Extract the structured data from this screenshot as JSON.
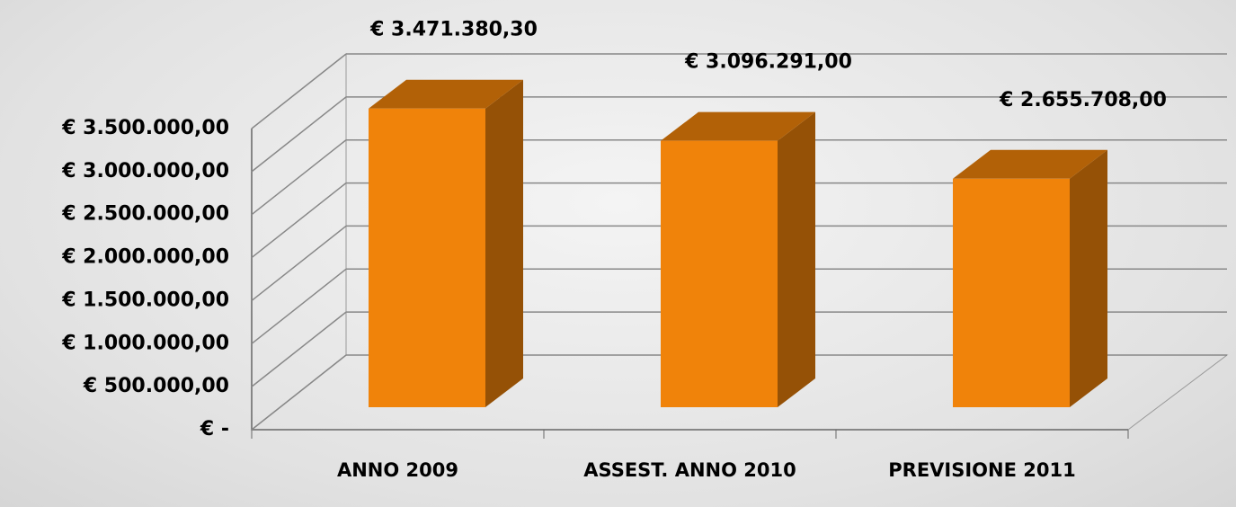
{
  "chart_data": {
    "type": "bar3d",
    "categories": [
      "ANNO 2009",
      "ASSEST. ANNO 2010",
      "PREVISIONE 2011"
    ],
    "values": [
      3471380.3,
      3096291.0,
      2655708.0
    ],
    "value_labels": [
      "€ 3.471.380,30",
      "€ 3.096.291,00",
      "€ 2.655.708,00"
    ],
    "color": "#f0830a",
    "ylim": [
      0,
      3500000
    ],
    "yticks": [
      {
        "value": 0,
        "label": "€ -"
      },
      {
        "value": 500000,
        "label": "€ 500.000,00"
      },
      {
        "value": 1000000,
        "label": "€ 1.000.000,00"
      },
      {
        "value": 1500000,
        "label": "€ 1.500.000,00"
      },
      {
        "value": 2000000,
        "label": "€ 2.000.000,00"
      },
      {
        "value": 2500000,
        "label": "€ 2.500.000,00"
      },
      {
        "value": 3000000,
        "label": "€ 3.000.000,00"
      },
      {
        "value": 3500000,
        "label": "€ 3.500.000,00"
      }
    ],
    "grid": true
  }
}
